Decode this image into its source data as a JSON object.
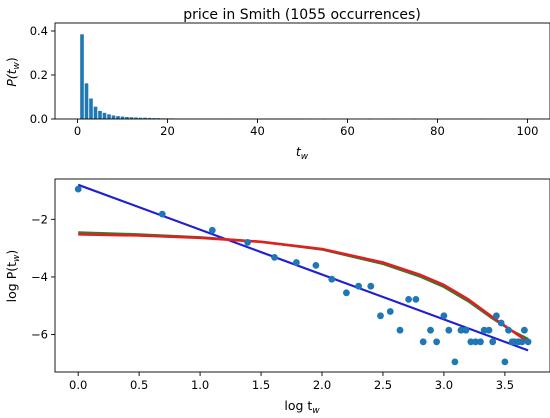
{
  "chart_data": [
    {
      "type": "bar",
      "title": "price in Smith (1055 occurrences)",
      "xlabel_main": "t",
      "xlabel_sub": "w",
      "ylabel_pre": "P(t",
      "ylabel_sub": "w",
      "ylabel_post": ")",
      "xlim": [
        -5,
        105
      ],
      "ylim": [
        0,
        0.4
      ],
      "xticks": [
        0,
        20,
        40,
        60,
        80,
        100
      ],
      "yticks": [
        0.0,
        0.2,
        0.4
      ],
      "ytick_labels": [
        "0.0",
        "0.2",
        "0.4"
      ],
      "x": [
        1,
        2,
        3,
        4,
        5,
        6,
        7,
        8,
        9,
        10,
        11,
        12,
        13,
        14,
        15,
        16,
        17,
        18,
        19,
        20,
        21,
        22,
        23,
        24,
        25,
        26,
        27,
        28,
        29,
        30,
        31,
        32,
        33,
        34,
        35,
        36,
        37,
        38,
        39,
        40,
        41,
        42,
        43,
        44,
        45,
        46,
        47,
        48,
        49,
        50,
        52,
        55,
        60,
        65,
        70,
        75,
        80,
        90,
        100
      ],
      "values": [
        0.385,
        0.162,
        0.093,
        0.056,
        0.037,
        0.028,
        0.021,
        0.016,
        0.013,
        0.011,
        0.009,
        0.008,
        0.007,
        0.006,
        0.006,
        0.005,
        0.004,
        0.004,
        0.003,
        0.003,
        0.003,
        0.002,
        0.002,
        0.002,
        0.002,
        0.002,
        0.002,
        0.001,
        0.002,
        0.002,
        0.001,
        0.002,
        0.001,
        0.001,
        0.002,
        0.001,
        0.001,
        0.001,
        0.001,
        0.001,
        0.001,
        0.001,
        0.001,
        0.001,
        0.001,
        0.001,
        0.001,
        0.001,
        0.001,
        0.001,
        0.001,
        0.001,
        0.001,
        0.001,
        0.001,
        0.001,
        0.001,
        0.001,
        0.001
      ]
    },
    {
      "type": "scatter",
      "xlabel_main": "log t",
      "xlabel_sub": "w",
      "ylabel_pre": "log P(t",
      "ylabel_sub": "w",
      "ylabel_post": ")",
      "xlim": [
        -0.19,
        3.87
      ],
      "ylim": [
        -7.3,
        -0.6
      ],
      "xticks": [
        0.0,
        0.5,
        1.0,
        1.5,
        2.0,
        2.5,
        3.0,
        3.5
      ],
      "xtick_labels": [
        "0.0",
        "0.5",
        "1.0",
        "1.5",
        "2.0",
        "2.5",
        "3.0",
        "3.5"
      ],
      "yticks": [
        -2,
        -4,
        -6
      ],
      "ytick_labels": [
        "−2",
        "−4",
        "−6"
      ],
      "points": [
        [
          0.0,
          -0.95
        ],
        [
          0.69,
          -1.82
        ],
        [
          1.1,
          -2.38
        ],
        [
          1.39,
          -2.8
        ],
        [
          1.61,
          -3.32
        ],
        [
          1.79,
          -3.5
        ],
        [
          1.95,
          -3.6
        ],
        [
          2.08,
          -4.08
        ],
        [
          2.2,
          -4.55
        ],
        [
          2.3,
          -4.32
        ],
        [
          2.4,
          -4.32
        ],
        [
          2.48,
          -5.35
        ],
        [
          2.56,
          -5.2
        ],
        [
          2.64,
          -5.85
        ],
        [
          2.71,
          -4.78
        ],
        [
          2.77,
          -4.78
        ],
        [
          2.83,
          -6.25
        ],
        [
          2.89,
          -5.85
        ],
        [
          2.94,
          -6.25
        ],
        [
          3.0,
          -5.35
        ],
        [
          3.04,
          -5.85
        ],
        [
          3.09,
          -6.95
        ],
        [
          3.14,
          -5.85
        ],
        [
          3.18,
          -5.85
        ],
        [
          3.22,
          -6.25
        ],
        [
          3.26,
          -6.25
        ],
        [
          3.3,
          -6.25
        ],
        [
          3.33,
          -5.85
        ],
        [
          3.37,
          -5.85
        ],
        [
          3.4,
          -6.25
        ],
        [
          3.43,
          -5.35
        ],
        [
          3.47,
          -5.6
        ],
        [
          3.5,
          -6.95
        ],
        [
          3.53,
          -5.85
        ],
        [
          3.56,
          -6.25
        ],
        [
          3.58,
          -6.25
        ],
        [
          3.61,
          -6.25
        ],
        [
          3.64,
          -6.25
        ],
        [
          3.66,
          -5.85
        ],
        [
          3.69,
          -6.25
        ]
      ],
      "series": [
        {
          "color": "#1f1fd6",
          "x": [
            0.0,
            3.69
          ],
          "y": [
            -0.8,
            -6.55
          ]
        },
        {
          "color": "#2e7d32",
          "x": [
            0.0,
            0.5,
            1.0,
            1.5,
            2.0,
            2.5,
            2.8,
            3.0,
            3.2,
            3.4,
            3.55,
            3.69
          ],
          "y": [
            -2.45,
            -2.52,
            -2.62,
            -2.78,
            -3.05,
            -3.55,
            -3.98,
            -4.35,
            -4.85,
            -5.45,
            -5.85,
            -6.15
          ]
        },
        {
          "color": "#e02020",
          "x": [
            0.0,
            0.5,
            1.0,
            1.5,
            2.0,
            2.5,
            2.8,
            3.0,
            3.2,
            3.4,
            3.55,
            3.69
          ],
          "y": [
            -2.52,
            -2.56,
            -2.64,
            -2.78,
            -3.03,
            -3.5,
            -3.92,
            -4.28,
            -4.78,
            -5.4,
            -5.85,
            -6.25
          ]
        }
      ]
    }
  ]
}
